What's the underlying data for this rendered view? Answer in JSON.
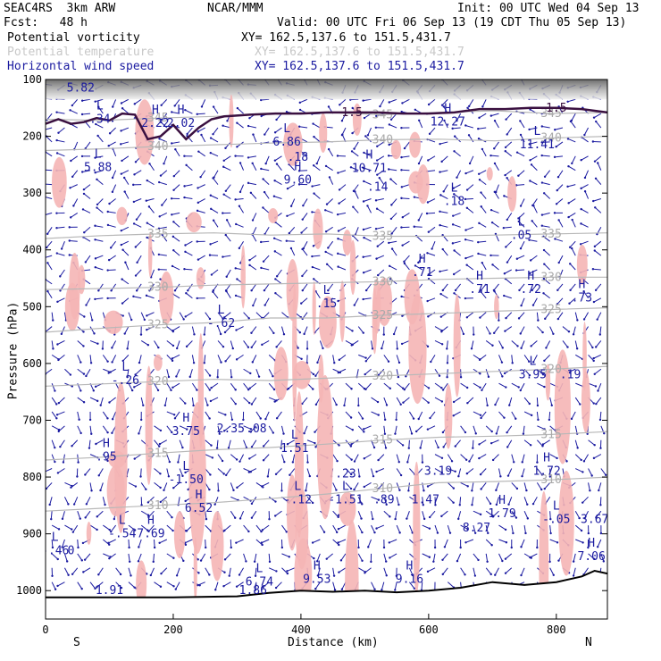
{
  "header": {
    "model": "SEAC4RS  3km ARW",
    "org": "NCAR/MMM",
    "init": "Init: 00 UTC Wed 04 Sep 13",
    "fcst": "Fcst:   48 h",
    "valid": "Valid: 00 UTC Fri 06 Sep 13 (19 CDT Thu 05 Sep 13)"
  },
  "fields": [
    {
      "name": "Potential vorticity",
      "xy": "XY= 162.5,137.6 to 151.5,431.7",
      "color": "#000000"
    },
    {
      "name": "Potential temperature",
      "xy": "XY= 162.5,137.6 to 151.5,431.7",
      "color": "#c8c8c8"
    },
    {
      "name": "Horizontal wind speed",
      "xy": "XY= 162.5,137.6 to 151.5,431.7",
      "color": "#1a1aa0"
    }
  ],
  "chart_data": {
    "type": "cross-section",
    "xlabel": "Distance (km)",
    "ylabel": "Pressure (hPa)",
    "xlim": [
      0,
      880
    ],
    "ylim": [
      1050,
      100
    ],
    "x_ticks": [
      0,
      200,
      400,
      600,
      800
    ],
    "y_ticks": [
      100,
      200,
      300,
      400,
      500,
      600,
      700,
      800,
      900,
      1000
    ],
    "x_endpoints": {
      "left": "S",
      "right": "N"
    },
    "theta_contours": [
      {
        "label": "345",
        "p": [
          170,
          172,
          168,
          165,
          160,
          158,
          162,
          158,
          155,
          160,
          158
        ]
      },
      {
        "label": "340",
        "p": [
          225,
          222,
          218,
          215,
          212,
          210,
          206,
          205,
          208,
          203,
          200
        ]
      },
      {
        "label": "335",
        "p": [
          380,
          375,
          372,
          370,
          374,
          372,
          376,
          376,
          374,
          372,
          370
        ]
      },
      {
        "label": "330",
        "p": [
          470,
          468,
          466,
          462,
          460,
          458,
          456,
          452,
          450,
          448,
          448
        ]
      },
      {
        "label": "325",
        "p": [
          545,
          538,
          532,
          528,
          520,
          520,
          515,
          512,
          508,
          505,
          502
        ]
      },
      {
        "label": "320",
        "p": [
          640,
          636,
          632,
          628,
          630,
          626,
          622,
          618,
          614,
          610,
          605
        ]
      },
      {
        "label": "315",
        "p": [
          770,
          765,
          758,
          752,
          748,
          742,
          735,
          730,
          728,
          725,
          720
        ]
      },
      {
        "label": "310",
        "p": [
          860,
          855,
          850,
          845,
          838,
          830,
          820,
          810,
          808,
          805,
          800
        ]
      }
    ],
    "theta_x": [
      0,
      88,
      176,
      264,
      352,
      440,
      528,
      616,
      704,
      792,
      880
    ],
    "tropopause_pv": {
      "label": "1.5",
      "x": [
        0,
        20,
        40,
        60,
        80,
        100,
        120,
        140,
        160,
        180,
        200,
        220,
        240,
        260,
        280,
        320,
        360,
        400,
        440,
        480,
        520,
        560,
        600,
        640,
        680,
        720,
        760,
        800,
        840,
        880
      ],
      "p": [
        178,
        170,
        178,
        175,
        168,
        172,
        160,
        162,
        205,
        200,
        180,
        205,
        185,
        170,
        165,
        162,
        160,
        160,
        158,
        158,
        158,
        160,
        160,
        158,
        152,
        152,
        150,
        150,
        152,
        158
      ]
    },
    "terrain": {
      "x": [
        0,
        100,
        200,
        300,
        350,
        400,
        450,
        500,
        550,
        600,
        650,
        700,
        750,
        800,
        840,
        860,
        880
      ],
      "p": [
        1012,
        1012,
        1012,
        1010,
        1004,
        1000,
        1002,
        1000,
        1003,
        1000,
        995,
        985,
        990,
        985,
        975,
        965,
        970
      ]
    },
    "annotations": [
      {
        "t": "L",
        "v": "5.82",
        "x": 55,
        "p": 110
      },
      {
        "t": "L",
        "v": ".34",
        "x": 85,
        "p": 165
      },
      {
        "t": "H",
        "v": "2.22",
        "x": 172,
        "p": 172
      },
      {
        "t": "H",
        "v": "2.02",
        "x": 212,
        "p": 172
      },
      {
        "t": "L",
        "v": "6.86",
        "x": 378,
        "p": 205
      },
      {
        "t": "",
        "v": ".18",
        "x": 395,
        "p": 232
      },
      {
        "t": "L",
        "v": "5.88",
        "x": 82,
        "p": 250
      },
      {
        "t": "H",
        "v": "9.60",
        "x": 395,
        "p": 272
      },
      {
        "t": "H",
        "v": "10.71",
        "x": 507,
        "p": 252
      },
      {
        "t": "",
        "v": ".14",
        "x": 520,
        "p": 285
      },
      {
        "t": "H",
        "v": "12.27",
        "x": 630,
        "p": 170
      },
      {
        "t": "L",
        "v": "11.41",
        "x": 770,
        "p": 210
      },
      {
        "t": "L",
        "v": ".18",
        "x": 640,
        "p": 310
      },
      {
        "t": "L",
        "v": ".05",
        "x": 745,
        "p": 370
      },
      {
        "t": "H",
        "v": ".71",
        "x": 590,
        "p": 435
      },
      {
        "t": "H",
        "v": ".71",
        "x": 680,
        "p": 465
      },
      {
        "t": "H",
        "v": ".72",
        "x": 760,
        "p": 465
      },
      {
        "t": "H",
        "v": ".73",
        "x": 840,
        "p": 480
      },
      {
        "t": "L",
        "v": ".15",
        "x": 440,
        "p": 490
      },
      {
        "t": "L",
        "v": "-.62",
        "x": 275,
        "p": 525
      },
      {
        "t": "L",
        "v": "-.26",
        "x": 125,
        "p": 625
      },
      {
        "t": "L",
        "v": "3.95",
        "x": 763,
        "p": 615
      },
      {
        "t": "",
        "v": ".19",
        "x": 822,
        "p": 615
      },
      {
        "t": "H",
        "v": "3.75",
        "x": 220,
        "p": 715
      },
      {
        "t": "",
        "v": "2.35",
        "x": 290,
        "p": 710
      },
      {
        "t": "",
        "v": ".08",
        "x": 330,
        "p": 710
      },
      {
        "t": "L",
        "v": "1.51",
        "x": 390,
        "p": 745
      },
      {
        "t": "H",
        "v": ".95",
        "x": 95,
        "p": 760
      },
      {
        "t": "L",
        "v": "-1.50",
        "x": 220,
        "p": 800
      },
      {
        "t": "",
        "v": ".23",
        "x": 470,
        "p": 790
      },
      {
        "t": "",
        "v": "3.19",
        "x": 615,
        "p": 785
      },
      {
        "t": "H",
        "v": "1.72",
        "x": 785,
        "p": 785
      },
      {
        "t": "L",
        "v": "-.12",
        "x": 395,
        "p": 835
      },
      {
        "t": "L",
        "v": "-1.51",
        "x": 470,
        "p": 835
      },
      {
        "t": "",
        "v": ".89",
        "x": 530,
        "p": 835
      },
      {
        "t": "",
        "v": "1.47",
        "x": 595,
        "p": 835
      },
      {
        "t": "H",
        "v": "6.52",
        "x": 240,
        "p": 850
      },
      {
        "t": "H",
        "v": "1.79",
        "x": 715,
        "p": 860
      },
      {
        "t": "L",
        "v": "-.05",
        "x": 800,
        "p": 870
      },
      {
        "t": "",
        "v": "3.67",
        "x": 860,
        "p": 870
      },
      {
        "t": "L",
        "v": "-.54",
        "x": 120,
        "p": 895
      },
      {
        "t": "H",
        "v": "7.69",
        "x": 165,
        "p": 895
      },
      {
        "t": "",
        "v": "8.27",
        "x": 675,
        "p": 885
      },
      {
        "t": "L",
        "v": "-.46",
        "x": 15,
        "p": 925
      },
      {
        "t": "",
        "v": "0",
        "x": 40,
        "p": 925
      },
      {
        "t": "H",
        "v": "7.06",
        "x": 855,
        "p": 935
      },
      {
        "t": "L",
        "v": "6.74",
        "x": 335,
        "p": 980
      },
      {
        "t": "H",
        "v": "9.53",
        "x": 425,
        "p": 975
      },
      {
        "t": "H",
        "v": "9.16",
        "x": 570,
        "p": 975
      },
      {
        "t": "",
        "v": "1.86",
        "x": 325,
        "p": 995
      },
      {
        "t": "",
        "v": "1.91",
        "x": 100,
        "p": 995
      }
    ]
  }
}
